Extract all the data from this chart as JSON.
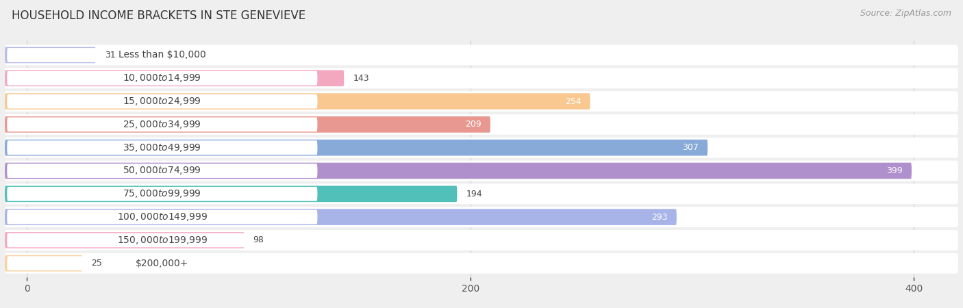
{
  "title": "HOUSEHOLD INCOME BRACKETS IN STE GENEVIEVE",
  "source": "Source: ZipAtlas.com",
  "categories": [
    "Less than $10,000",
    "$10,000 to $14,999",
    "$15,000 to $24,999",
    "$25,000 to $34,999",
    "$35,000 to $49,999",
    "$50,000 to $74,999",
    "$75,000 to $99,999",
    "$100,000 to $149,999",
    "$150,000 to $199,999",
    "$200,000+"
  ],
  "values": [
    31,
    143,
    254,
    209,
    307,
    399,
    194,
    293,
    98,
    25
  ],
  "bar_colors": [
    "#b8bce8",
    "#f4a8c0",
    "#f9c890",
    "#e89890",
    "#88aad8",
    "#b090cc",
    "#50c0b8",
    "#a8b4e8",
    "#f4a8c0",
    "#f9d0a0"
  ],
  "xlim": [
    -10,
    420
  ],
  "xticks": [
    0,
    200,
    400
  ],
  "background_color": "#efefef",
  "row_bg_color": "#ffffff",
  "title_fontsize": 12,
  "label_fontsize": 10,
  "value_fontsize": 9,
  "source_fontsize": 9,
  "value_threshold_white": 200
}
